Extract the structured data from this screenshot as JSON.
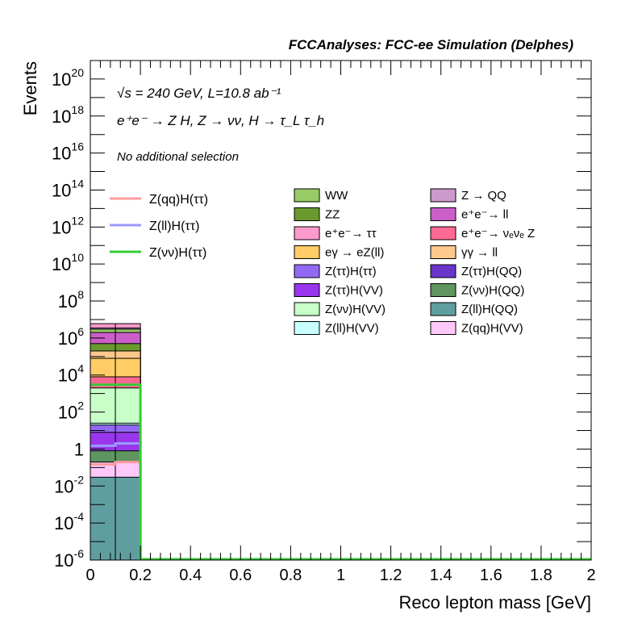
{
  "chart_data": {
    "type": "bar",
    "title": "FCCAnalyses: FCC-ee Simulation (Delphes)",
    "xlabel": "Reco lepton mass [GeV]",
    "ylabel": "Events",
    "xlim": [
      0,
      2
    ],
    "ylim": [
      1e-06,
      1e+21
    ],
    "y_scale": "log",
    "x_ticks": [
      "0",
      "0.2",
      "0.4",
      "0.6",
      "0.8",
      "1",
      "1.2",
      "1.4",
      "1.6",
      "1.8",
      "2"
    ],
    "y_ticks": [
      {
        "base": "10",
        "exp": "-6",
        "value": 1e-06
      },
      {
        "base": "10",
        "exp": "-4",
        "value": 0.0001
      },
      {
        "base": "10",
        "exp": "-2",
        "value": 0.01
      },
      {
        "base": "1",
        "exp": "",
        "value": 1
      },
      {
        "base": "10",
        "exp": "2",
        "value": 100.0
      },
      {
        "base": "10",
        "exp": "4",
        "value": 10000.0
      },
      {
        "base": "10",
        "exp": "6",
        "value": 1000000.0
      },
      {
        "base": "10",
        "exp": "8",
        "value": 100000000.0
      },
      {
        "base": "10",
        "exp": "10",
        "value": 10000000000.0
      },
      {
        "base": "10",
        "exp": "12",
        "value": 1000000000000.0
      },
      {
        "base": "10",
        "exp": "14",
        "value": 100000000000000.0
      },
      {
        "base": "10",
        "exp": "16",
        "value": 1e+16
      },
      {
        "base": "10",
        "exp": "18",
        "value": 1e+18
      },
      {
        "base": "10",
        "exp": "20",
        "value": 1e+20
      }
    ],
    "bins": [
      [
        0,
        0.1
      ],
      [
        0.1,
        0.2
      ]
    ],
    "stack": [
      {
        "name": "Z(ll)H(QQ)",
        "color": "#5f9ea0",
        "cum": [
          0.03,
          0.03
        ]
      },
      {
        "name": "Z(ττ)H(QQ)",
        "color": "#6a35c9",
        "cum": [
          0.0001,
          5e-06
        ]
      },
      {
        "name": "Z(qq)H(VV)",
        "color": "#ffc8fa",
        "cum": [
          0.2,
          0.2
        ]
      },
      {
        "name": "Z(νν)H(QQ)",
        "color": "#5e9560",
        "cum": [
          0.8,
          0.8
        ]
      },
      {
        "name": "Z(ττ)H(VV)",
        "color": "#9a36ee",
        "cum": [
          8,
          8
        ]
      },
      {
        "name": "Z(ττ)H(ττ)",
        "color": "#9269f4",
        "cum": [
          20,
          20
        ]
      },
      {
        "name": "Z(ll)H(VV)",
        "color": "#c8ffff",
        "cum": [
          25,
          25
        ]
      },
      {
        "name": "Z(νν)H(VV)",
        "color": "#c8ffc8",
        "cum": [
          2000,
          2000
        ]
      },
      {
        "name": "e⁺e⁻→ νₑνₑ Z",
        "color": "#ff6994",
        "cum": [
          8000,
          8000
        ]
      },
      {
        "name": "eγ → eZ(ll)",
        "color": "#ffcc66",
        "cum": [
          80000,
          80000
        ]
      },
      {
        "name": "γγ → ll",
        "color": "#ffc88c",
        "cum": [
          200000,
          200000
        ]
      },
      {
        "name": "ZZ",
        "color": "#6a9a2e",
        "cum": [
          500000,
          500000
        ]
      },
      {
        "name": "e⁺e⁻→ ll",
        "color": "#cc5ec8",
        "cum": [
          2000000,
          2000000
        ]
      },
      {
        "name": "WW",
        "color": "#98cc66",
        "cum": [
          3000000,
          3000000
        ]
      },
      {
        "name": "Z → QQ",
        "color": "#cc9acc",
        "cum": [
          3500000,
          3500000
        ]
      },
      {
        "name": "e⁺e⁻→ ττ",
        "color": "#ff9acc",
        "cum": [
          6000000,
          6000000
        ]
      }
    ],
    "signals": [
      {
        "name": "Z(qq)H(ττ)",
        "color": "#ff9a9a",
        "values": [
          0.15,
          0.2
        ]
      },
      {
        "name": "Z(ll)H(ττ)",
        "color": "#9a9aff",
        "values": [
          1.5,
          2
        ]
      },
      {
        "name": "Z(νν)H(ττ)",
        "color": "#33cc33",
        "values": [
          3000,
          3000
        ]
      }
    ],
    "legend_signal": [
      "Z(qq)H(ττ)",
      "Z(ll)H(ττ)",
      "Z(νν)H(ττ)"
    ],
    "legend_col1": [
      "WW",
      "ZZ",
      "e⁺e⁻→ ττ",
      "eγ → eZ(ll)",
      "Z(ττ)H(ττ)",
      "Z(ττ)H(VV)",
      "Z(νν)H(VV)",
      "Z(ll)H(VV)"
    ],
    "legend_col2": [
      "Z → QQ",
      "e⁺e⁻→ ll",
      "e⁺e⁻→ νₑνₑ Z",
      "γγ → ll",
      "Z(ττ)H(QQ)",
      "Z(νν)H(QQ)",
      "Z(ll)H(QQ)",
      "Z(qq)H(VV)"
    ],
    "annotations": {
      "energy": "√s = 240 GeV, L=10.8 ab⁻¹",
      "process": "e⁺e⁻ → Z H, Z → νν, H → τ_L τ_h",
      "selection": "No additional selection"
    }
  }
}
